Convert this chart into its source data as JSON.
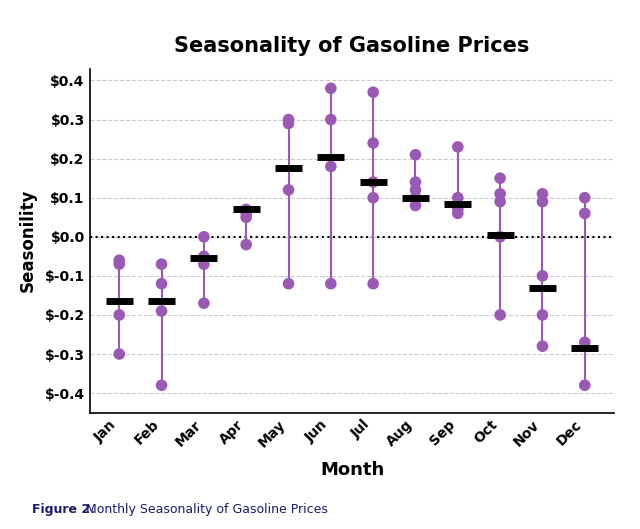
{
  "title": "Seasonality of Gasoline Prices",
  "xlabel": "Month",
  "ylabel": "Seasonility",
  "caption_bold": "Figure 2.",
  "caption_regular": "  Monthly Seasonality of Gasoline Prices",
  "months": [
    "Jan",
    "Feb",
    "Mar",
    "Apr",
    "May",
    "Jun",
    "Jul",
    "Aug",
    "Sep",
    "Oct",
    "Nov",
    "Dec"
  ],
  "dot_color": "#9B59B6",
  "median_color": "#000000",
  "background_color": "#ffffff",
  "ylim": [
    -0.45,
    0.43
  ],
  "yticks": [
    -0.4,
    -0.3,
    -0.2,
    -0.1,
    0.0,
    0.1,
    0.2,
    0.3,
    0.4
  ],
  "scatter_data": {
    "Jan": [
      -0.3,
      -0.2,
      -0.06,
      -0.07
    ],
    "Feb": [
      -0.38,
      -0.19,
      -0.12,
      -0.07
    ],
    "Mar": [
      -0.17,
      -0.07,
      -0.05,
      0.0
    ],
    "Apr": [
      -0.02,
      0.05,
      0.06,
      0.07
    ],
    "May": [
      -0.12,
      0.12,
      0.29,
      0.3
    ],
    "Jun": [
      -0.12,
      0.18,
      0.3,
      0.38
    ],
    "Jul": [
      -0.12,
      0.1,
      0.14,
      0.24,
      0.37
    ],
    "Aug": [
      0.08,
      0.1,
      0.12,
      0.14,
      0.21
    ],
    "Sep": [
      0.06,
      0.07,
      0.08,
      0.1,
      0.23
    ],
    "Oct": [
      -0.2,
      0.0,
      0.09,
      0.11,
      0.15
    ],
    "Nov": [
      -0.28,
      -0.2,
      -0.1,
      0.09,
      0.11
    ],
    "Dec": [
      -0.38,
      -0.27,
      0.06,
      0.1
    ]
  },
  "median_data": {
    "Jan": -0.165,
    "Feb": -0.165,
    "Mar": -0.055,
    "Apr": 0.07,
    "May": 0.175,
    "Jun": 0.205,
    "Jul": 0.14,
    "Aug": 0.1,
    "Sep": 0.085,
    "Oct": 0.005,
    "Nov": -0.13,
    "Dec": -0.285
  }
}
